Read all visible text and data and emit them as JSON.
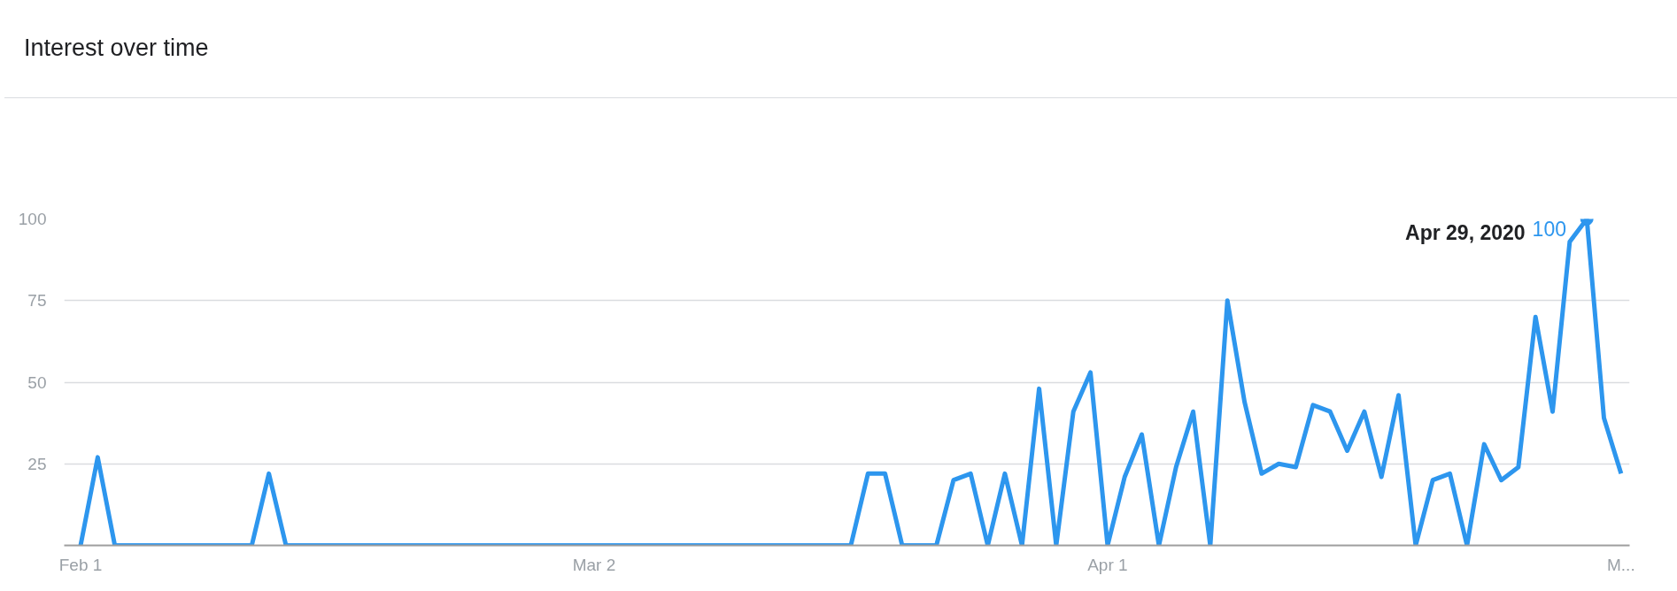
{
  "chart_data": {
    "type": "line",
    "title": "Interest over time",
    "x": [
      "2020-02-01",
      "2020-02-02",
      "2020-02-03",
      "2020-02-04",
      "2020-02-05",
      "2020-02-06",
      "2020-02-07",
      "2020-02-08",
      "2020-02-09",
      "2020-02-10",
      "2020-02-11",
      "2020-02-12",
      "2020-02-13",
      "2020-02-14",
      "2020-02-15",
      "2020-02-16",
      "2020-02-17",
      "2020-02-18",
      "2020-02-19",
      "2020-02-20",
      "2020-02-21",
      "2020-02-22",
      "2020-02-23",
      "2020-02-24",
      "2020-02-25",
      "2020-02-26",
      "2020-02-27",
      "2020-02-28",
      "2020-02-29",
      "2020-03-01",
      "2020-03-02",
      "2020-03-03",
      "2020-03-04",
      "2020-03-05",
      "2020-03-06",
      "2020-03-07",
      "2020-03-08",
      "2020-03-09",
      "2020-03-10",
      "2020-03-11",
      "2020-03-12",
      "2020-03-13",
      "2020-03-14",
      "2020-03-15",
      "2020-03-16",
      "2020-03-17",
      "2020-03-18",
      "2020-03-19",
      "2020-03-20",
      "2020-03-21",
      "2020-03-22",
      "2020-03-23",
      "2020-03-24",
      "2020-03-25",
      "2020-03-26",
      "2020-03-27",
      "2020-03-28",
      "2020-03-29",
      "2020-03-30",
      "2020-03-31",
      "2020-04-01",
      "2020-04-02",
      "2020-04-03",
      "2020-04-04",
      "2020-04-05",
      "2020-04-06",
      "2020-04-07",
      "2020-04-08",
      "2020-04-09",
      "2020-04-10",
      "2020-04-11",
      "2020-04-12",
      "2020-04-13",
      "2020-04-14",
      "2020-04-15",
      "2020-04-16",
      "2020-04-17",
      "2020-04-18",
      "2020-04-19",
      "2020-04-20",
      "2020-04-21",
      "2020-04-22",
      "2020-04-23",
      "2020-04-24",
      "2020-04-25",
      "2020-04-26",
      "2020-04-27",
      "2020-04-28",
      "2020-04-29",
      "2020-04-30",
      "2020-05-01"
    ],
    "series": [
      {
        "color": "#2d96ee",
        "values": [
          0,
          27,
          0,
          0,
          0,
          0,
          0,
          0,
          0,
          0,
          0,
          22,
          0,
          0,
          0,
          0,
          0,
          0,
          0,
          0,
          0,
          0,
          0,
          0,
          0,
          0,
          0,
          0,
          0,
          0,
          0,
          0,
          0,
          0,
          0,
          0,
          0,
          0,
          0,
          0,
          0,
          0,
          0,
          0,
          0,
          0,
          22,
          22,
          0,
          0,
          0,
          20,
          22,
          0,
          22,
          0,
          48,
          0,
          41,
          53,
          0,
          21,
          34,
          0,
          24,
          41,
          0,
          75,
          44,
          22,
          25,
          24,
          43,
          41,
          29,
          41,
          21,
          46,
          0,
          20,
          22,
          0,
          31,
          20,
          24,
          70,
          41,
          93,
          100,
          39,
          22
        ],
        "value_labels": [
          null,
          null,
          null,
          null,
          null,
          null,
          null,
          null,
          null,
          null,
          null,
          null,
          null,
          null,
          null,
          null,
          null,
          null,
          null,
          null,
          null,
          null,
          null,
          null,
          null,
          null,
          null,
          null,
          null,
          null,
          null,
          null,
          null,
          null,
          null,
          null,
          null,
          null,
          null,
          null,
          null,
          null,
          null,
          null,
          null,
          null,
          null,
          null,
          null,
          null,
          null,
          null,
          null,
          null,
          null,
          null,
          null,
          null,
          null,
          null,
          null,
          null,
          null,
          null,
          null,
          null,
          null,
          null,
          null,
          null,
          null,
          null,
          null,
          null,
          null,
          null,
          null,
          null,
          null,
          null,
          null,
          null,
          null,
          null,
          null,
          null,
          null,
          null,
          "100",
          null,
          null
        ]
      }
    ],
    "annotations": [
      "Apr 29, 2020"
    ],
    "xlim": [
      "2020-01-31T01:00",
      "2020-05-01T12:00"
    ],
    "xticks": [
      {
        "value": "2020-02-01",
        "label": "Feb 1"
      },
      {
        "value": "2020-03-02",
        "label": "Mar 2"
      },
      {
        "value": "2020-04-01",
        "label": "Apr 1"
      },
      {
        "value": "2020-05-01",
        "label": "M..."
      }
    ],
    "ylim": [
      0,
      100
    ],
    "yticks": [
      {
        "value": 0,
        "label": null
      },
      25,
      50,
      75,
      100
    ],
    "grid": "y",
    "marker": "none",
    "line_style": "solid"
  }
}
